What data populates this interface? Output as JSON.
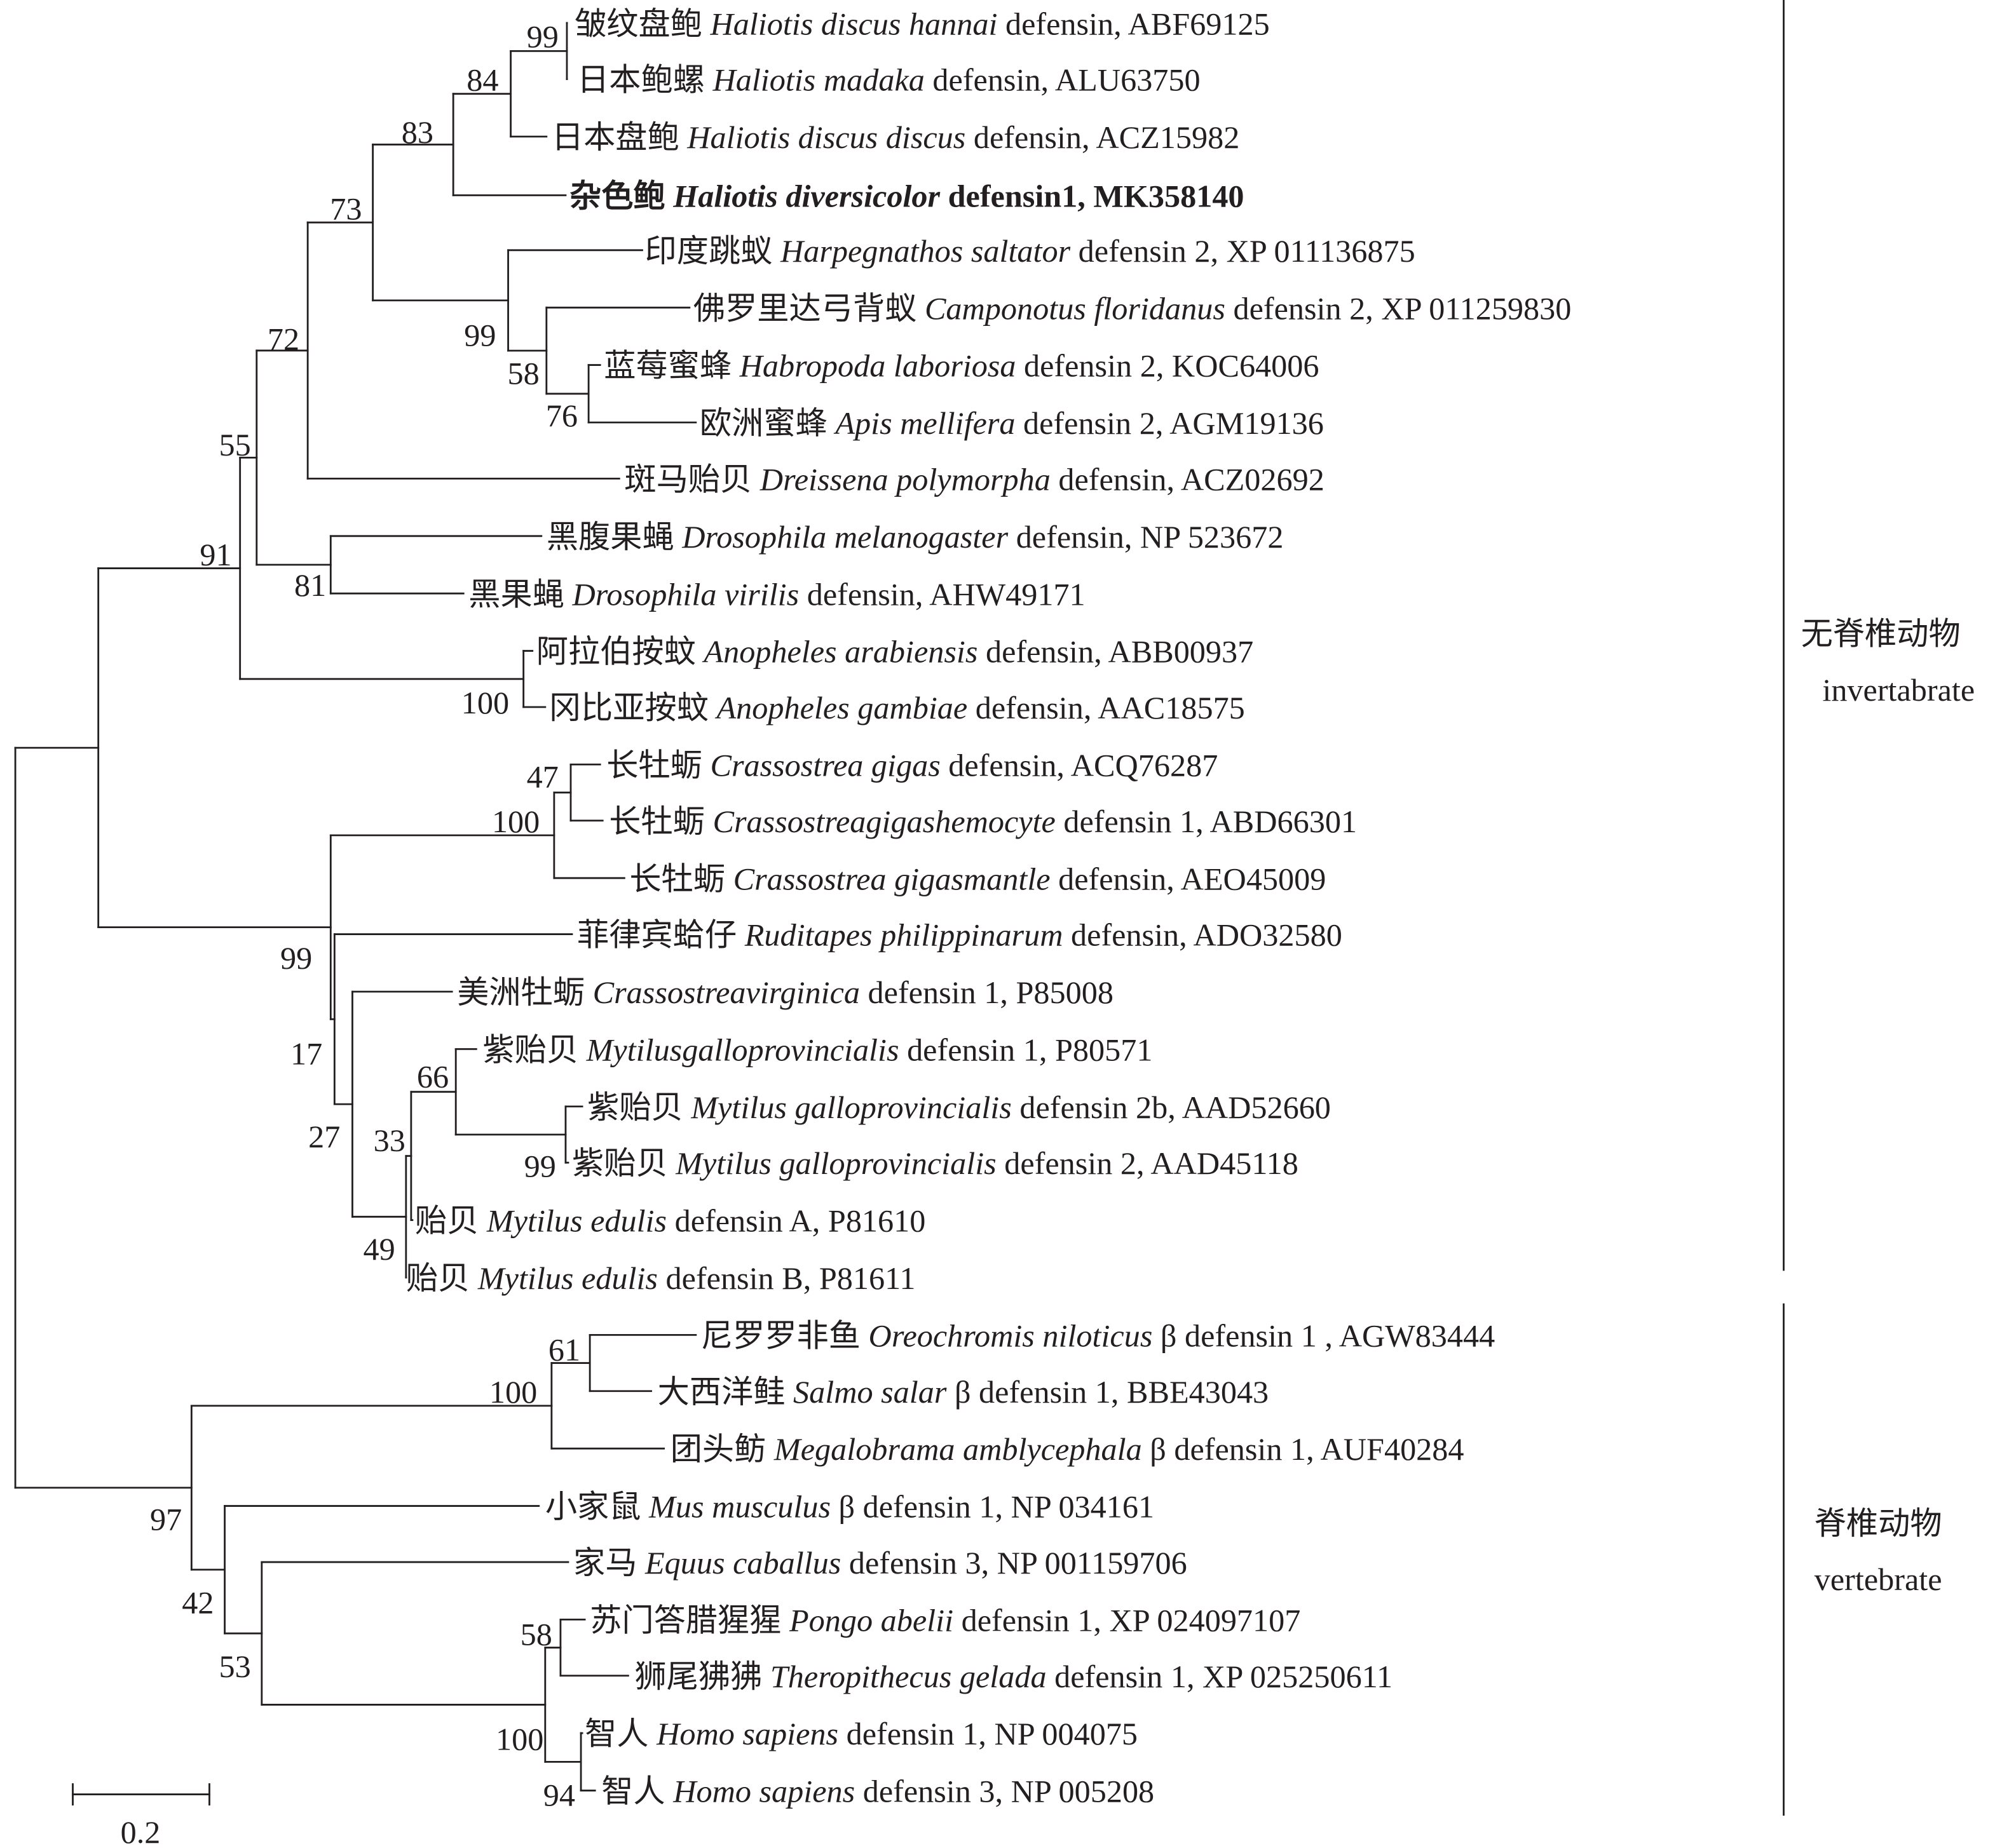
{
  "leaves": [
    {
      "cn": "皱纹盘鲍",
      "species": "Haliotis discus hannai",
      "desc": "defensin, ABF69125",
      "bold": false
    },
    {
      "cn": "日本鲍螺",
      "species": "Haliotis madaka",
      "desc": "defensin, ALU63750",
      "bold": false
    },
    {
      "cn": "日本盘鲍",
      "species": "Haliotis discus discus",
      "desc": "defensin, ACZ15982",
      "bold": false
    },
    {
      "cn": "杂色鲍",
      "species": "Haliotis diversicolor",
      "desc": "defensin1, MK358140",
      "bold": true
    },
    {
      "cn": "印度跳蚁",
      "species": "Harpegnathos saltator",
      "desc": "defensin 2, XP 011136875",
      "bold": false
    },
    {
      "cn": "佛罗里达弓背蚁",
      "species": "Camponotus floridanus",
      "desc": "defensin 2, XP 011259830",
      "bold": false
    },
    {
      "cn": "蓝莓蜜蜂",
      "species": "Habropoda laboriosa",
      "desc": "defensin 2, KOC64006",
      "bold": false
    },
    {
      "cn": "欧洲蜜蜂",
      "species": "Apis mellifera",
      "desc": "defensin 2, AGM19136",
      "bold": false
    },
    {
      "cn": "斑马贻贝",
      "species": "Dreissena polymorpha",
      "desc": "defensin, ACZ02692",
      "bold": false
    },
    {
      "cn": "黑腹果蝇",
      "species": "Drosophila melanogaster",
      "desc": "defensin, NP 523672",
      "bold": false
    },
    {
      "cn": "黑果蝇",
      "species": "Drosophila virilis",
      "desc": "defensin, AHW49171",
      "bold": false
    },
    {
      "cn": "阿拉伯按蚊",
      "species": "Anopheles arabiensis",
      "desc": "defensin, ABB00937",
      "bold": false
    },
    {
      "cn": "冈比亚按蚊",
      "species": "Anopheles gambiae",
      "desc": "defensin, AAC18575",
      "bold": false
    },
    {
      "cn": "长牡蛎",
      "species": "Crassostrea gigas",
      "desc": "defensin, ACQ76287",
      "bold": false
    },
    {
      "cn": "长牡蛎",
      "species": "Crassostreagigashemocyte",
      "desc": "defensin 1, ABD66301",
      "bold": false
    },
    {
      "cn": "长牡蛎",
      "species": "Crassostrea gigasmantle",
      "desc": "defensin, AEO45009",
      "bold": false
    },
    {
      "cn": "菲律宾蛤仔",
      "species": "Ruditapes philippinarum",
      "desc": "defensin, ADO32580",
      "bold": false
    },
    {
      "cn": "美洲牡蛎",
      "species": "Crassostreavirginica",
      "desc": "defensin 1, P85008",
      "bold": false
    },
    {
      "cn": "紫贻贝",
      "species": "Mytilusgalloprovincialis",
      "desc": "defensin 1, P80571",
      "bold": false
    },
    {
      "cn": "紫贻贝",
      "species": "Mytilus galloprovincialis",
      "desc": "defensin 2b, AAD52660",
      "bold": false
    },
    {
      "cn": "紫贻贝",
      "species": "Mytilus galloprovincialis",
      "desc": "defensin 2, AAD45118",
      "bold": false
    },
    {
      "cn": "贻贝",
      "species": "Mytilus edulis",
      "desc": "defensin A, P81610",
      "bold": false
    },
    {
      "cn": "贻贝",
      "species": "Mytilus edulis",
      "desc": "defensin B, P81611",
      "bold": false
    },
    {
      "cn": "尼罗罗非鱼",
      "species": "Oreochromis niloticus",
      "desc": "β defensin 1 , AGW83444",
      "bold": false
    },
    {
      "cn": "大西洋鲑",
      "species": "Salmo salar",
      "desc": "β defensin 1, BBE43043",
      "bold": false
    },
    {
      "cn": "团头鲂",
      "species": "Megalobrama amblycephala",
      "desc": "β defensin 1, AUF40284",
      "bold": false
    },
    {
      "cn": "小家鼠",
      "species": "Mus musculus",
      "desc": "β defensin 1, NP 034161",
      "bold": false
    },
    {
      "cn": "家马",
      "species": "Equus caballus",
      "desc": "defensin 3, NP 001159706",
      "bold": false
    },
    {
      "cn": "苏门答腊猩猩",
      "species": "Pongo abelii",
      "desc": "defensin 1, XP 024097107",
      "bold": false
    },
    {
      "cn": "狮尾狒狒",
      "species": "Theropithecus gelada",
      "desc": "defensin 1, XP 025250611",
      "bold": false
    },
    {
      "cn": "智人",
      "species": "Homo sapiens",
      "desc": "defensin 1, NP 004075",
      "bold": false
    },
    {
      "cn": "智人",
      "species": "Homo sapiens",
      "desc": "defensin 3, NP 005208",
      "bold": false
    }
  ],
  "bootstrap": {
    "A": "99",
    "B": "84",
    "C": "83",
    "D": "76",
    "E": "58",
    "F": "99",
    "G": "73",
    "H": "72",
    "I": "81",
    "J": "55",
    "K": "100",
    "L": "91",
    "M": "47",
    "N": "100",
    "P": "99",
    "Q": "66",
    "R": "33",
    "S": "49",
    "T": "27",
    "U": "17",
    "V": "99",
    "X": "61",
    "Y": "100",
    "Z": "58",
    "AA": "94",
    "BB": "100",
    "CC": "53",
    "DD": "42",
    "EE": "97"
  },
  "groups": {
    "invertebrate": {
      "cn": "无脊椎动物",
      "en": "invertabrate"
    },
    "vertebrate": {
      "cn": "脊椎动物",
      "en": "vertebrate"
    }
  },
  "scale_bar": {
    "label": "0.2"
  }
}
